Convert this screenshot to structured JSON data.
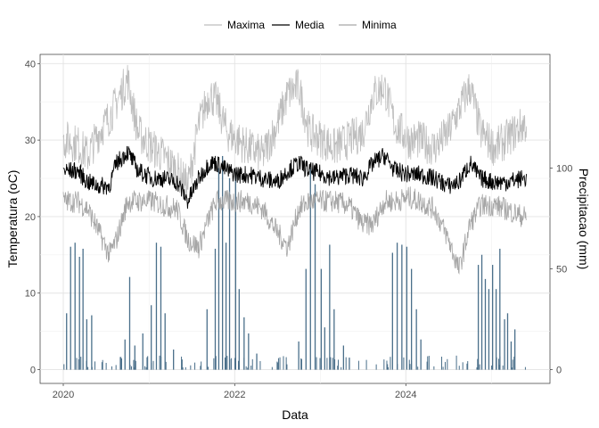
{
  "chart_data": {
    "type": "line",
    "xlabel": "Data",
    "ylabel": "Temperatura (oC)",
    "y2label": "Precipitacao (mm)",
    "x_ticks": [
      "2020",
      "2022",
      "2024"
    ],
    "x_range": [
      "2020-01-01",
      "2025-05-31"
    ],
    "ylim": [
      -1.8,
      41.2
    ],
    "y_ticks": [
      0,
      10,
      20,
      30,
      40
    ],
    "y2lim": [
      -6.8,
      156.4
    ],
    "y2_ticks": [
      0,
      50,
      100
    ],
    "legend_position": "top",
    "grid": true,
    "colors": {
      "maxima": "#bdbdbd",
      "media": "#000000",
      "minima": "#a6a6a6",
      "precipitation": "#4a6f8a"
    },
    "series": [
      {
        "name": "Maxima",
        "axis": "left",
        "points": [
          [
            "2020-01-15",
            30
          ],
          [
            "2020-03-01",
            29.5
          ],
          [
            "2020-04-15",
            28
          ],
          [
            "2020-06-01",
            31
          ],
          [
            "2020-07-15",
            33
          ],
          [
            "2020-09-01",
            36
          ],
          [
            "2020-10-01",
            38
          ],
          [
            "2020-11-15",
            31
          ],
          [
            "2021-01-15",
            29
          ],
          [
            "2021-03-01",
            28
          ],
          [
            "2021-05-01",
            26
          ],
          [
            "2021-06-15",
            24
          ],
          [
            "2021-08-01",
            32
          ],
          [
            "2021-09-15",
            36
          ],
          [
            "2021-10-15",
            35
          ],
          [
            "2021-12-01",
            31
          ],
          [
            "2022-01-15",
            30
          ],
          [
            "2022-03-01",
            29
          ],
          [
            "2022-05-01",
            28
          ],
          [
            "2022-07-01",
            32
          ],
          [
            "2022-08-15",
            36
          ],
          [
            "2022-10-01",
            37
          ],
          [
            "2022-11-15",
            31
          ],
          [
            "2023-01-15",
            30
          ],
          [
            "2023-03-01",
            29
          ],
          [
            "2023-05-01",
            30
          ],
          [
            "2023-07-01",
            31
          ],
          [
            "2023-08-15",
            36
          ],
          [
            "2023-10-01",
            37
          ],
          [
            "2023-11-15",
            32
          ],
          [
            "2024-01-15",
            30
          ],
          [
            "2024-03-01",
            30
          ],
          [
            "2024-05-01",
            29
          ],
          [
            "2024-07-01",
            31
          ],
          [
            "2024-08-15",
            34
          ],
          [
            "2024-10-01",
            37
          ],
          [
            "2024-11-15",
            31
          ],
          [
            "2025-01-15",
            29
          ],
          [
            "2025-03-01",
            30
          ],
          [
            "2025-05-15",
            32
          ]
        ]
      },
      {
        "name": "Media",
        "axis": "left",
        "points": [
          [
            "2020-01-15",
            26
          ],
          [
            "2020-03-01",
            26
          ],
          [
            "2020-04-15",
            24.5
          ],
          [
            "2020-06-01",
            24
          ],
          [
            "2020-07-15",
            24
          ],
          [
            "2020-08-15",
            27
          ],
          [
            "2020-10-01",
            28.5
          ],
          [
            "2020-11-15",
            26
          ],
          [
            "2021-01-15",
            25
          ],
          [
            "2021-03-01",
            25
          ],
          [
            "2021-05-01",
            24.5
          ],
          [
            "2021-06-15",
            22
          ],
          [
            "2021-08-01",
            25
          ],
          [
            "2021-09-15",
            27
          ],
          [
            "2021-10-15",
            27
          ],
          [
            "2021-12-01",
            26
          ],
          [
            "2022-01-15",
            25.5
          ],
          [
            "2022-03-01",
            25.5
          ],
          [
            "2022-05-01",
            25
          ],
          [
            "2022-07-01",
            24.5
          ],
          [
            "2022-08-15",
            26
          ],
          [
            "2022-10-01",
            27
          ],
          [
            "2022-11-15",
            26
          ],
          [
            "2023-01-15",
            25.5
          ],
          [
            "2023-03-01",
            25
          ],
          [
            "2023-05-01",
            25.5
          ],
          [
            "2023-07-01",
            25
          ],
          [
            "2023-08-15",
            27
          ],
          [
            "2023-10-01",
            28
          ],
          [
            "2023-11-15",
            26
          ],
          [
            "2024-01-15",
            25.5
          ],
          [
            "2024-03-01",
            25.5
          ],
          [
            "2024-05-01",
            25
          ],
          [
            "2024-07-01",
            24
          ],
          [
            "2024-08-15",
            24.5
          ],
          [
            "2024-10-01",
            27
          ],
          [
            "2024-11-15",
            25
          ],
          [
            "2025-01-15",
            24.5
          ],
          [
            "2025-03-01",
            24.5
          ],
          [
            "2025-05-15",
            25
          ]
        ]
      },
      {
        "name": "Minima",
        "axis": "left",
        "points": [
          [
            "2020-01-15",
            22
          ],
          [
            "2020-03-01",
            22
          ],
          [
            "2020-04-15",
            21
          ],
          [
            "2020-06-01",
            18
          ],
          [
            "2020-07-15",
            15
          ],
          [
            "2020-08-15",
            17
          ],
          [
            "2020-10-01",
            22
          ],
          [
            "2020-11-15",
            22
          ],
          [
            "2021-01-15",
            22
          ],
          [
            "2021-03-01",
            21.5
          ],
          [
            "2021-05-01",
            21
          ],
          [
            "2021-06-15",
            17
          ],
          [
            "2021-08-01",
            16
          ],
          [
            "2021-09-15",
            20
          ],
          [
            "2021-10-15",
            22
          ],
          [
            "2021-12-01",
            22
          ],
          [
            "2022-01-15",
            22
          ],
          [
            "2022-03-01",
            22
          ],
          [
            "2022-05-01",
            21
          ],
          [
            "2022-07-01",
            18
          ],
          [
            "2022-08-15",
            16
          ],
          [
            "2022-10-01",
            21
          ],
          [
            "2022-11-15",
            22
          ],
          [
            "2023-01-15",
            22
          ],
          [
            "2023-03-01",
            22
          ],
          [
            "2023-05-01",
            21.5
          ],
          [
            "2023-07-01",
            19
          ],
          [
            "2023-08-15",
            19
          ],
          [
            "2023-10-01",
            22
          ],
          [
            "2023-11-15",
            22
          ],
          [
            "2024-01-15",
            22.5
          ],
          [
            "2024-03-01",
            22
          ],
          [
            "2024-05-01",
            21
          ],
          [
            "2024-07-01",
            17
          ],
          [
            "2024-08-15",
            13
          ],
          [
            "2024-10-01",
            19
          ],
          [
            "2024-11-15",
            21.5
          ],
          [
            "2025-01-15",
            21.5
          ],
          [
            "2025-03-01",
            21
          ],
          [
            "2025-05-15",
            20
          ]
        ]
      }
    ],
    "precipitation": {
      "name": "Precipitacao",
      "axis": "right",
      "points": [
        [
          "2020-01-15",
          28
        ],
        [
          "2020-02-01",
          61
        ],
        [
          "2020-02-20",
          63
        ],
        [
          "2020-03-10",
          56
        ],
        [
          "2020-03-25",
          60
        ],
        [
          "2020-04-10",
          25
        ],
        [
          "2020-05-01",
          27
        ],
        [
          "2020-09-20",
          15
        ],
        [
          "2020-10-10",
          46
        ],
        [
          "2020-11-01",
          12
        ],
        [
          "2020-12-05",
          18
        ],
        [
          "2021-01-10",
          32
        ],
        [
          "2021-02-01",
          63
        ],
        [
          "2021-02-20",
          61
        ],
        [
          "2021-03-10",
          28
        ],
        [
          "2021-04-15",
          10
        ],
        [
          "2021-09-05",
          30
        ],
        [
          "2021-10-10",
          60
        ],
        [
          "2021-10-25",
          100
        ],
        [
          "2021-11-10",
          106
        ],
        [
          "2021-11-25",
          63
        ],
        [
          "2021-12-10",
          95
        ],
        [
          "2022-01-05",
          98
        ],
        [
          "2022-01-20",
          40
        ],
        [
          "2022-02-10",
          26
        ],
        [
          "2022-03-01",
          18
        ],
        [
          "2022-04-05",
          8
        ],
        [
          "2022-10-01",
          14
        ],
        [
          "2022-11-01",
          50
        ],
        [
          "2022-11-20",
          100
        ],
        [
          "2022-12-10",
          92
        ],
        [
          "2023-01-05",
          50
        ],
        [
          "2023-01-20",
          21
        ],
        [
          "2023-02-10",
          62
        ],
        [
          "2023-03-01",
          30
        ],
        [
          "2023-04-10",
          12
        ],
        [
          "2023-05-05",
          6
        ],
        [
          "2023-11-05",
          58
        ],
        [
          "2023-11-25",
          63
        ],
        [
          "2023-12-15",
          62
        ],
        [
          "2024-01-05",
          61
        ],
        [
          "2024-01-25",
          50
        ],
        [
          "2024-02-15",
          30
        ],
        [
          "2024-03-05",
          15
        ],
        [
          "2024-04-01",
          4
        ],
        [
          "2024-11-05",
          52
        ],
        [
          "2024-11-20",
          57
        ],
        [
          "2024-12-05",
          45
        ],
        [
          "2024-12-20",
          40
        ],
        [
          "2025-01-05",
          52
        ],
        [
          "2025-01-20",
          40
        ],
        [
          "2025-02-05",
          60
        ],
        [
          "2025-02-25",
          25
        ],
        [
          "2025-03-10",
          28
        ],
        [
          "2025-03-25",
          14
        ],
        [
          "2025-04-10",
          20
        ]
      ]
    },
    "legend": [
      "Maxima",
      "Media",
      "Minima"
    ]
  }
}
